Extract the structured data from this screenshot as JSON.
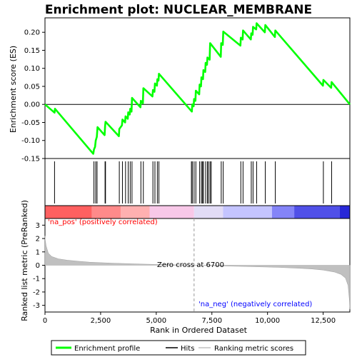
{
  "chart_data": {
    "type": "line",
    "title": "Enrichment plot: NUCLEAR_MEMBRANE",
    "x_range": [
      0,
      13700
    ],
    "x_ticks": [
      0,
      2500,
      5000,
      7500,
      10000,
      12500
    ],
    "x_tick_labels": [
      "0",
      "2,500",
      "5,000",
      "7,500",
      "10,000",
      "12,500"
    ],
    "xlabel": "Rank in Ordered Dataset",
    "es_panel": {
      "ylabel": "Enrichment score (ES)",
      "ylim": [
        -0.15,
        0.24
      ],
      "y_ticks": [
        -0.15,
        -0.1,
        -0.05,
        0.0,
        0.05,
        0.1,
        0.15,
        0.2
      ],
      "y_tick_labels": [
        "-0.15",
        "-0.10",
        "-0.05",
        "0.00",
        "0.05",
        "0.10",
        "0.15",
        "0.20"
      ],
      "color": "#00ff00",
      "series": [
        {
          "name": "Enrichment profile",
          "x": [
            0,
            430,
            450,
            2170,
            2200,
            2250,
            2280,
            2330,
            2360,
            2680,
            2700,
            2720,
            3320,
            3340,
            3460,
            3480,
            3600,
            3620,
            3720,
            3740,
            3810,
            3830,
            3890,
            3910,
            4290,
            4310,
            4400,
            4420,
            4830,
            4850,
            4920,
            4940,
            5030,
            5050,
            5100,
            5120,
            6600,
            6620,
            6680,
            6700,
            6760,
            6780,
            6930,
            6950,
            7010,
            7030,
            7100,
            7120,
            7200,
            7220,
            7280,
            7300,
            7400,
            7420,
            7900,
            7920,
            7990,
            8010,
            8780,
            8800,
            8880,
            8900,
            9250,
            9270,
            9330,
            9350,
            9490,
            9510,
            9880,
            9900,
            10330,
            10350,
            12490,
            12510,
            12860,
            12880,
            13700
          ],
          "y": [
            0.0,
            -0.023,
            -0.012,
            -0.137,
            -0.125,
            -0.118,
            -0.1,
            -0.09,
            -0.063,
            -0.085,
            -0.06,
            -0.048,
            -0.088,
            -0.068,
            -0.058,
            -0.042,
            -0.05,
            -0.033,
            -0.04,
            -0.022,
            -0.028,
            -0.012,
            -0.02,
            0.018,
            -0.008,
            0.01,
            0.003,
            0.045,
            0.022,
            0.04,
            0.035,
            0.058,
            0.052,
            0.07,
            0.066,
            0.085,
            -0.02,
            0.0,
            -0.005,
            0.015,
            0.01,
            0.038,
            0.028,
            0.055,
            0.05,
            0.075,
            0.07,
            0.095,
            0.09,
            0.115,
            0.11,
            0.13,
            0.124,
            0.17,
            0.132,
            0.17,
            0.165,
            0.202,
            0.163,
            0.185,
            0.18,
            0.205,
            0.18,
            0.197,
            0.193,
            0.215,
            0.208,
            0.225,
            0.2,
            0.22,
            0.187,
            0.205,
            0.052,
            0.068,
            0.046,
            0.062,
            0.0
          ]
        }
      ]
    },
    "hits": {
      "name": "Hits",
      "x": [
        430,
        2200,
        2280,
        2340,
        2700,
        2720,
        3340,
        3480,
        3620,
        3740,
        3830,
        3910,
        4310,
        4420,
        4850,
        4940,
        5050,
        5120,
        6580,
        6620,
        6700,
        6780,
        6950,
        7030,
        7080,
        7120,
        7220,
        7300,
        7350,
        7420,
        7470,
        7920,
        8010,
        8800,
        8900,
        9270,
        9350,
        9510,
        9900,
        10350,
        12510,
        12880
      ]
    },
    "colorbar": {
      "colors": [
        "#ff6060",
        "#ff8a8a",
        "#ffb0b0",
        "#f8c8e8",
        "#e2dcf6",
        "#c4c4ff",
        "#8484f8",
        "#5050e8",
        "#2828d8"
      ],
      "breaks": [
        0,
        2100,
        3400,
        4700,
        6700,
        8000,
        10200,
        11200,
        13250,
        13700
      ]
    },
    "ranked_panel": {
      "ylabel": "Ranked list metric (PreRanked)",
      "ylim": [
        -3.5,
        3.5
      ],
      "y_ticks": [
        -3,
        -2,
        -1,
        0,
        1,
        2,
        3
      ],
      "y_tick_labels": [
        "-3",
        "-2",
        "-1",
        "0",
        "1",
        "2",
        "3"
      ],
      "series": {
        "name": "Ranking metric scores",
        "color": "#c0c0c0",
        "x": [
          0,
          10,
          50,
          150,
          300,
          600,
          1000,
          1500,
          2000,
          3000,
          4000,
          5000,
          6000,
          6700,
          7500,
          8500,
          9500,
          10500,
          11500,
          12000,
          12500,
          13000,
          13300,
          13500,
          13620,
          13680,
          13700
        ],
        "y": [
          2.2,
          1.9,
          1.45,
          0.9,
          0.65,
          0.48,
          0.38,
          0.3,
          0.23,
          0.16,
          0.1,
          0.06,
          0.02,
          0.0,
          -0.03,
          -0.07,
          -0.11,
          -0.16,
          -0.23,
          -0.28,
          -0.36,
          -0.5,
          -0.68,
          -0.95,
          -1.5,
          -2.6,
          -3.3
        ]
      },
      "zero_cross": 6700,
      "zero_cross_label": "Zero cross at 6700",
      "pos_label": "'na_pos' (positively correlated)",
      "pos_color": "#ff0000",
      "neg_label": "'na_neg' (negatively correlated)",
      "neg_color": "#0000ff"
    },
    "legend": {
      "placement": "bottom",
      "items": [
        {
          "label": "Enrichment profile",
          "color": "#00ff00"
        },
        {
          "label": "Hits",
          "color": "#000000"
        },
        {
          "label": "Ranking metric scores",
          "color": "#c0c0c0"
        }
      ]
    }
  }
}
